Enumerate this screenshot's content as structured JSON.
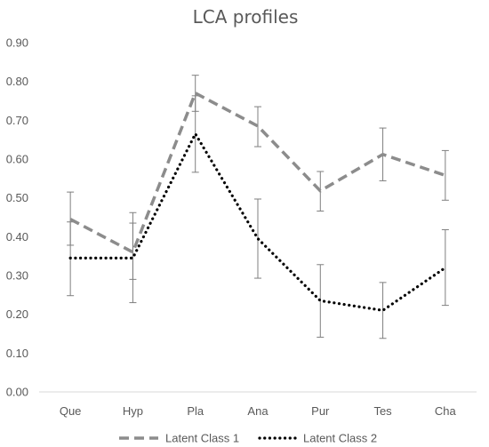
{
  "chart_data": {
    "type": "line",
    "title": "LCA profiles",
    "xlabel": "",
    "ylabel": "",
    "categories": [
      "Que",
      "Hyp",
      "Pla",
      "Ana",
      "Pur",
      "Tes",
      "Cha"
    ],
    "ylim": [
      0,
      0.9
    ],
    "yticks": [
      "0.00",
      "0.10",
      "0.20",
      "0.30",
      "0.40",
      "0.50",
      "0.60",
      "0.70",
      "0.80",
      "0.90"
    ],
    "grid": false,
    "legend_position": "bottom",
    "series": [
      {
        "name": "Latent Class 1",
        "color": "#8c8c8c",
        "line_style": "dashed",
        "values": [
          0.445,
          0.36,
          0.77,
          0.685,
          0.518,
          0.612,
          0.558
        ],
        "error_low": [
          0.378,
          0.29,
          0.723,
          0.632,
          0.466,
          0.544,
          0.494
        ],
        "error_high": [
          0.515,
          0.462,
          0.816,
          0.735,
          0.568,
          0.68,
          0.622
        ]
      },
      {
        "name": "Latent Class 2",
        "color": "#000000",
        "line_style": "dotted",
        "values": [
          0.345,
          0.345,
          0.665,
          0.395,
          0.235,
          0.21,
          0.32
        ],
        "error_low": [
          0.248,
          0.23,
          0.566,
          0.293,
          0.141,
          0.138,
          0.223
        ],
        "error_high": [
          0.438,
          0.435,
          0.763,
          0.497,
          0.328,
          0.282,
          0.418
        ]
      }
    ]
  }
}
